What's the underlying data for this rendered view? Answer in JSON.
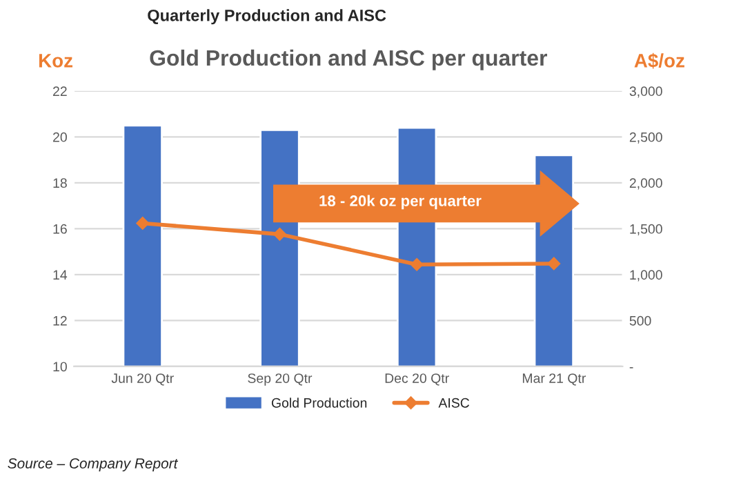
{
  "chart_data": {
    "type": "bar",
    "title": "Quarterly Production and AISC",
    "subtitle": "Gold Production and AISC per quarter",
    "ylabel": "Koz",
    "y2label": "A$/oz",
    "categories": [
      "Jun 20 Qtr",
      "Sep 20 Qtr",
      "Dec 20 Qtr",
      "Mar 21 Qtr"
    ],
    "series": [
      {
        "name": "Gold Production",
        "color": "#4472c4",
        "values": [
          20.5,
          20.3,
          20.4,
          19.2
        ]
      },
      {
        "name": "AISC",
        "type": "line",
        "axis": "y2",
        "color": "#ed7d31",
        "marker": "diamond",
        "values": [
          1560,
          1440,
          1110,
          1120
        ]
      }
    ],
    "ylim": [
      10,
      22
    ],
    "yticks": [
      10,
      12,
      14,
      16,
      18,
      20,
      22
    ],
    "y2lim": [
      0,
      3000
    ],
    "y2ticks": [
      {
        "value": 0,
        "label": "-"
      },
      {
        "value": 500,
        "label": "500"
      },
      {
        "value": 1000,
        "label": "1,000"
      },
      {
        "value": 1500,
        "label": "1,500"
      },
      {
        "value": 2000,
        "label": "2,000"
      },
      {
        "value": 2500,
        "label": "2,500"
      },
      {
        "value": 3000,
        "label": "3,000"
      }
    ],
    "grid": "y",
    "legend": "bottom",
    "annotations": [
      "18 - 20k oz per quarter",
      "Source – Company Report"
    ]
  }
}
